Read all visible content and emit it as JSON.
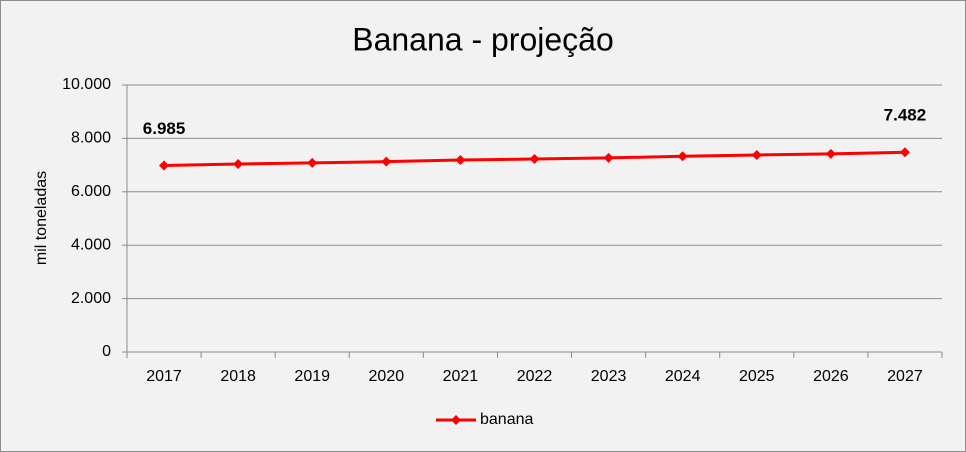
{
  "chart_data": {
    "type": "line",
    "title": "Banana - projeção",
    "y_label": "mil toneladas",
    "categories": [
      "2017",
      "2018",
      "2019",
      "2020",
      "2021",
      "2022",
      "2023",
      "2024",
      "2025",
      "2026",
      "2027"
    ],
    "series": [
      {
        "name": "banana",
        "color": "#ff0000",
        "values": [
          6985,
          7040,
          7085,
          7130,
          7190,
          7230,
          7270,
          7330,
          7380,
          7420,
          7482
        ],
        "value_labels": [
          "6.985",
          null,
          null,
          null,
          null,
          null,
          null,
          null,
          null,
          null,
          "7.482"
        ]
      }
    ],
    "ylim": [
      0,
      10000
    ],
    "yticks": [
      0,
      {
        "value": 2000,
        "label": "2.000"
      },
      {
        "value": 4000,
        "label": "4.000"
      },
      {
        "value": 6000,
        "label": "6.000"
      },
      {
        "value": 8000,
        "label": "8.000"
      },
      {
        "value": 10000,
        "label": "10.000"
      }
    ],
    "grid": true
  }
}
